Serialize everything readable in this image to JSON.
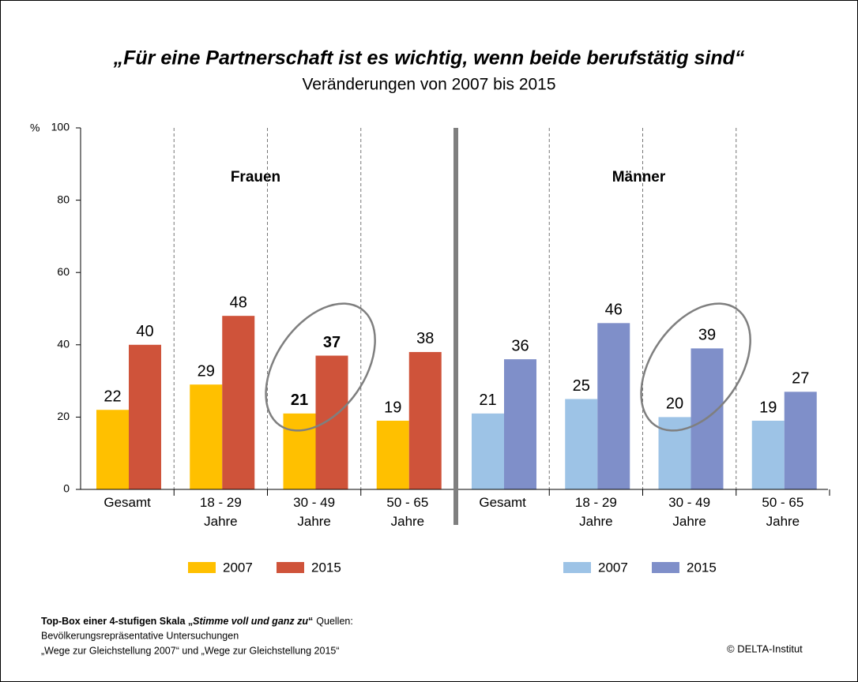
{
  "chart_data": {
    "type": "bar",
    "title": "„Für eine Partnerschaft ist es wichtig, wenn beide berufstätig sind“",
    "subtitle": "Veränderungen von 2007 bis 2015",
    "y_unit": "%",
    "ylim": [
      0,
      100
    ],
    "yticks": [
      0,
      20,
      40,
      60,
      80,
      100
    ],
    "groups": [
      {
        "name": "Frauen",
        "highlight": {
          "index": 2,
          "bold": true
        },
        "categories": [
          "Gesamt",
          "18 - 29 Jahre",
          "30 - 49 Jahre",
          "50 - 65 Jahre"
        ],
        "series": [
          {
            "name": "2007",
            "color": "#ffc000",
            "values": [
              22,
              29,
              21,
              19
            ]
          },
          {
            "name": "2015",
            "color": "#cf533a",
            "values": [
              40,
              48,
              37,
              38
            ]
          }
        ]
      },
      {
        "name": "Männer",
        "highlight": {
          "index": 2,
          "bold": false
        },
        "categories": [
          "Gesamt",
          "18 - 29 Jahre",
          "30 - 49 Jahre",
          "50 - 65 Jahre"
        ],
        "series": [
          {
            "name": "2007",
            "color": "#9dc3e6",
            "values": [
              21,
              25,
              20,
              19
            ]
          },
          {
            "name": "2015",
            "color": "#7f8fc9",
            "values": [
              36,
              46,
              39,
              27
            ]
          }
        ]
      }
    ],
    "note": {
      "lead": "Top-Box einer 4-stufigen Skala „",
      "scale": "Stimme voll und ganz zu",
      "close": "“",
      "rest": "Quellen:",
      "lines": [
        "Bevölkerungsrepräsentative Untersuchungen",
        "„Wege zur Gleichstellung 2007“ und „Wege zur Gleichstellung 2015“"
      ]
    },
    "copyright": "© DELTA-Institut"
  }
}
